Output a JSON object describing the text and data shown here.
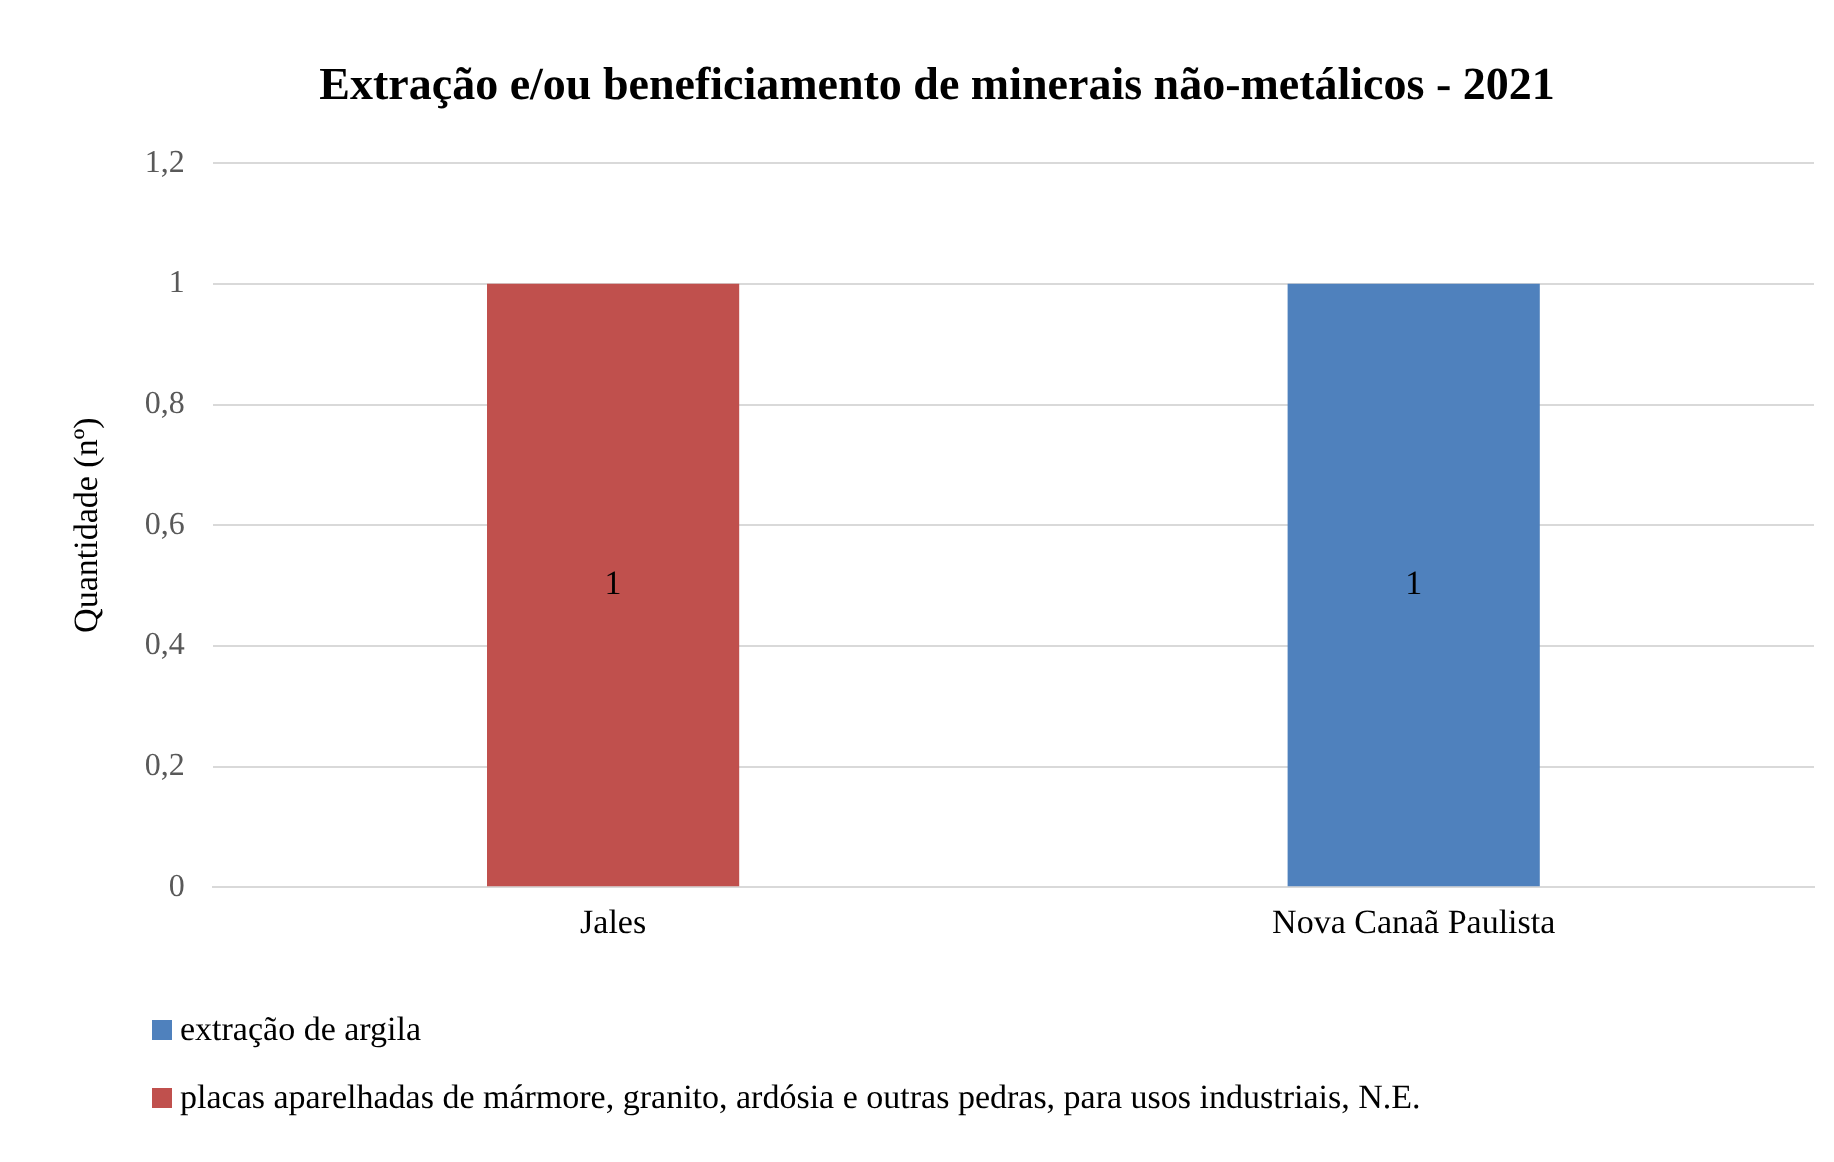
{
  "chart_data": {
    "type": "bar",
    "title": "Extração e/ou beneficiamento de minerais não-metálicos - 2021",
    "ylabel": "Quantidade (nº)",
    "categories": [
      "Jales",
      "Nova Canaã Paulista"
    ],
    "stacked": true,
    "series": [
      {
        "name": "extração de argila",
        "color": "#4f81bd",
        "values": [
          null,
          1
        ]
      },
      {
        "name": "placas aparelhadas de mármore, granito, ardósia e outras pedras, para usos industriais, N.E.",
        "color": "#c0504d",
        "values": [
          1,
          null
        ]
      }
    ],
    "ylim": [
      0,
      1.2
    ],
    "yticks": [
      0,
      {
        "value": 0.2,
        "label": "0,2"
      },
      {
        "value": 0.4,
        "label": "0,4"
      },
      {
        "value": 0.6,
        "label": "0,6"
      },
      {
        "value": 0.8,
        "label": "0,8"
      },
      1,
      {
        "value": 1.2,
        "label": "1,2"
      }
    ],
    "grid": "y",
    "legend": "bottom",
    "data_labels": true
  }
}
